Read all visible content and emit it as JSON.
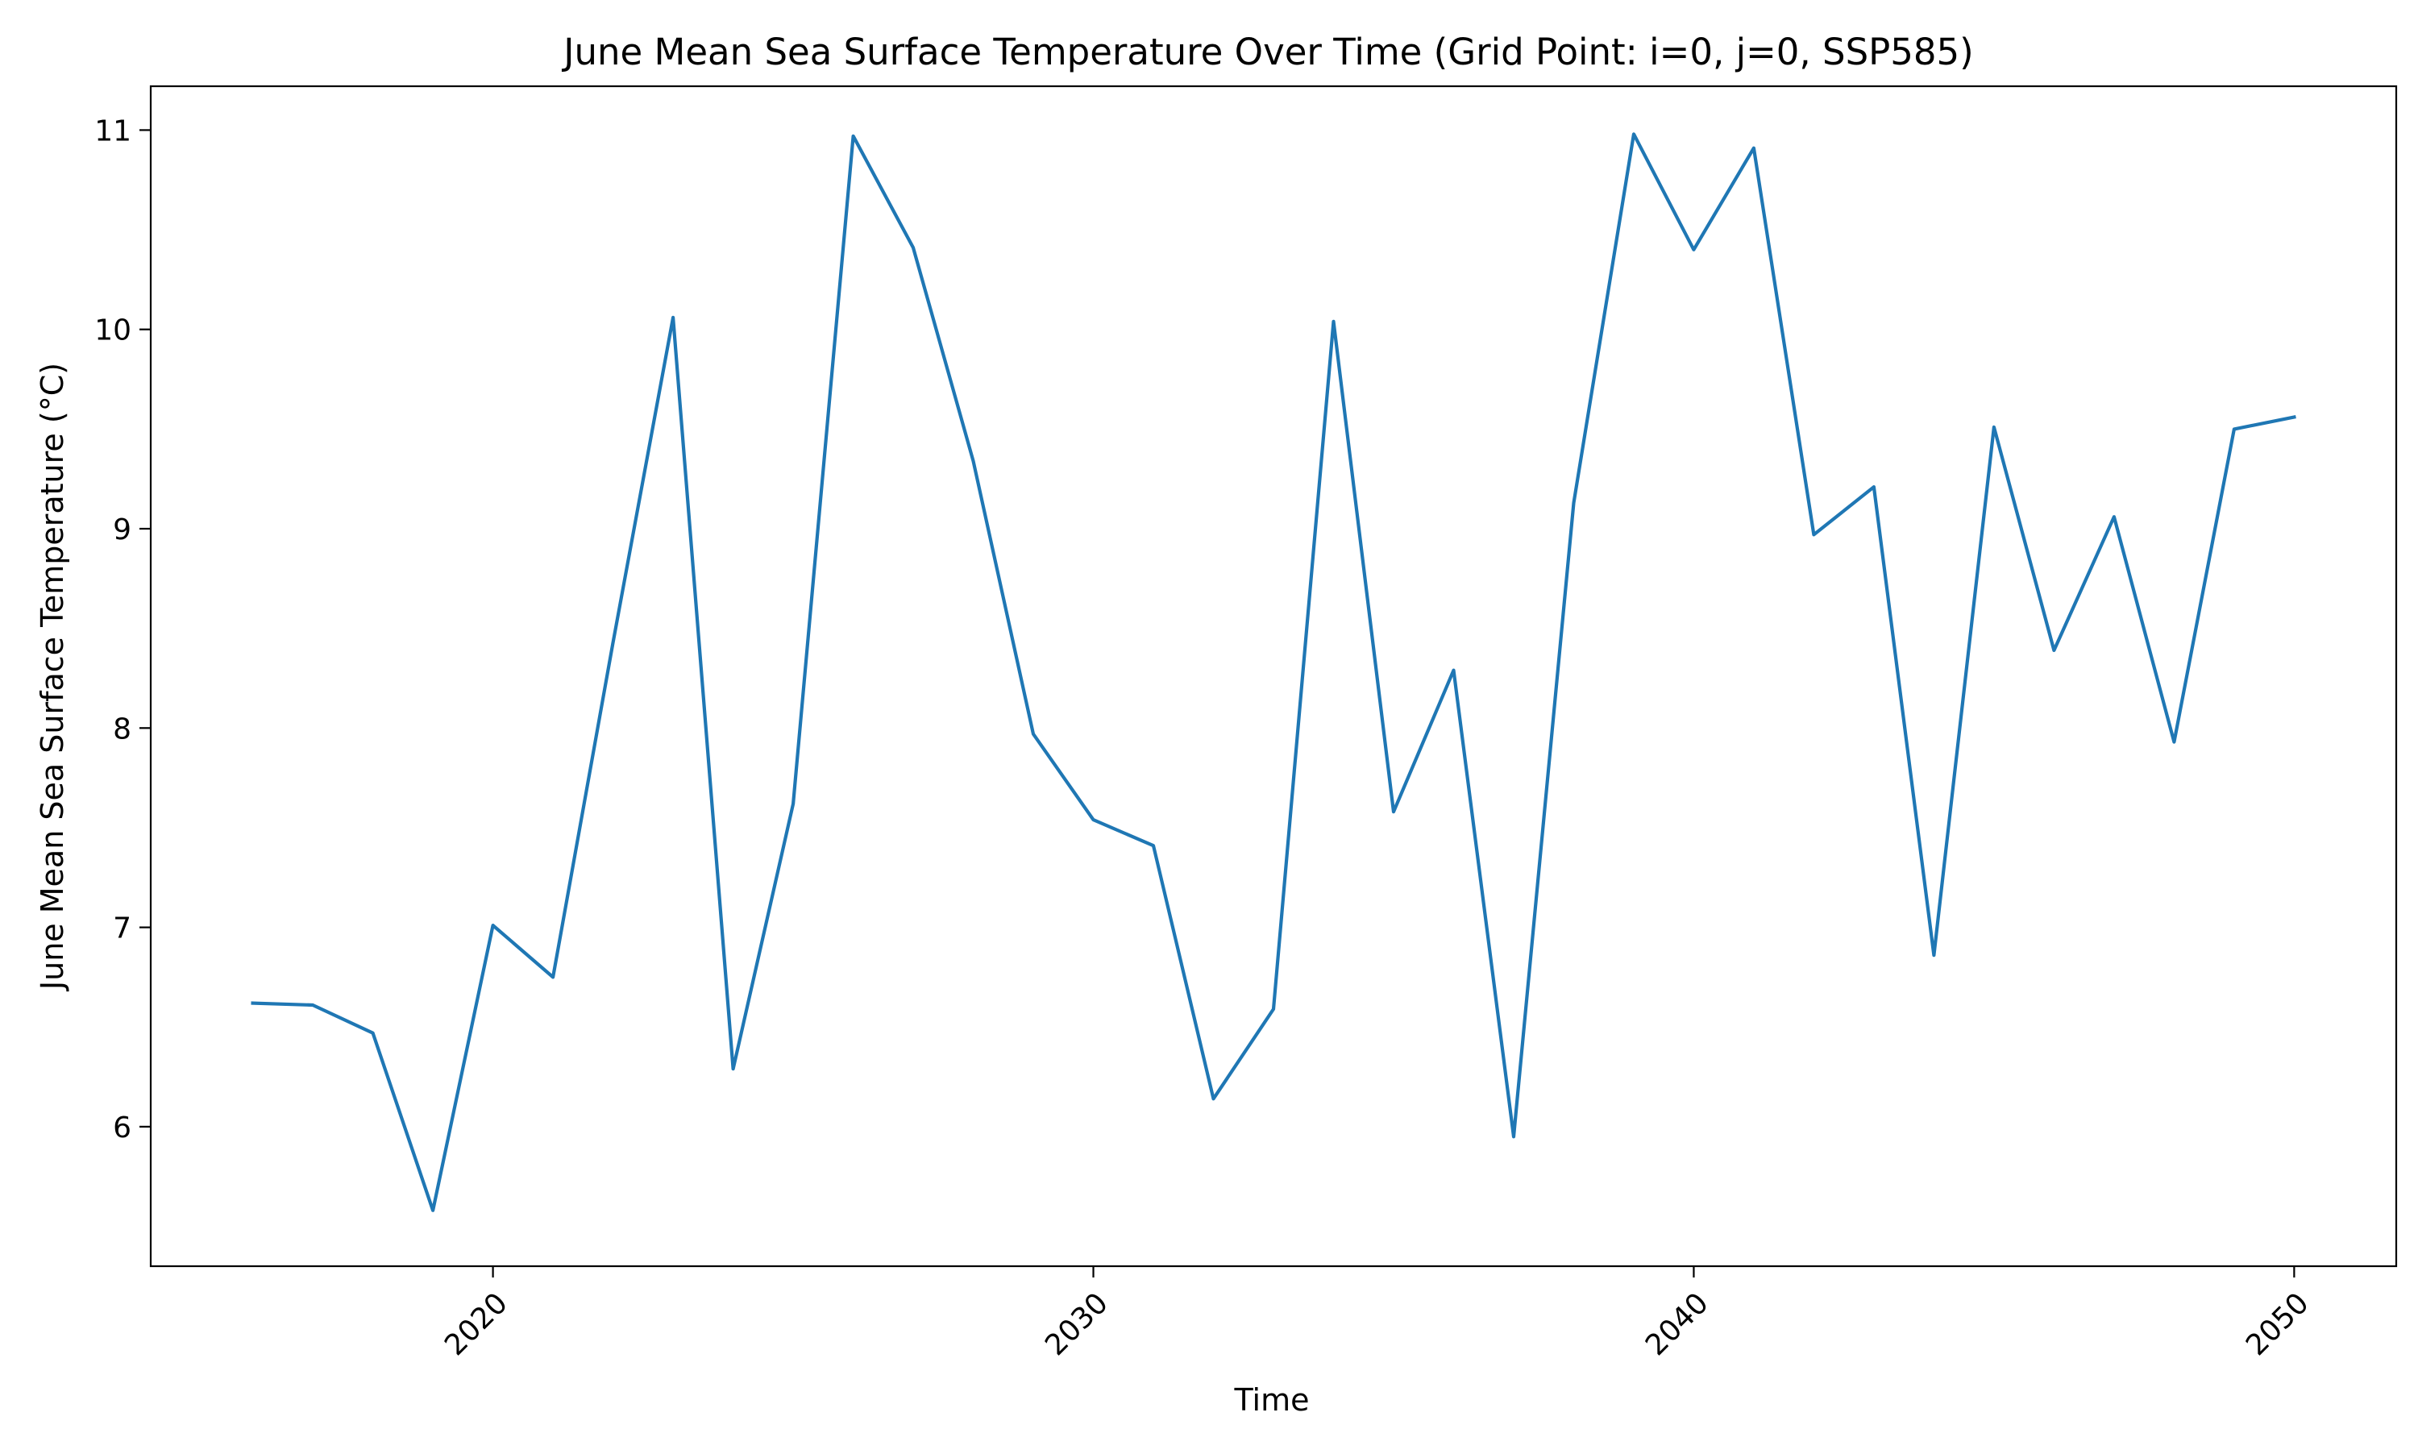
{
  "chart_data": {
    "type": "line",
    "title": "June Mean Sea Surface Temperature Over Time (Grid Point: i=0, j=0, SSP585)",
    "xlabel": "Time",
    "ylabel": "June Mean Sea Surface Temperature (°C)",
    "xlim": [
      2014.3,
      2051.7
    ],
    "ylim": [
      5.3,
      11.22
    ],
    "xticks": [
      2020,
      2030,
      2040,
      2050
    ],
    "xtick_labels": [
      "2020",
      "2030",
      "2040",
      "2050"
    ],
    "xtick_rotation": 45,
    "yticks": [
      6,
      7,
      8,
      9,
      10,
      11
    ],
    "ytick_labels": [
      "6",
      "7",
      "8",
      "9",
      "10",
      "11"
    ],
    "grid": false,
    "series": [
      {
        "color": "#1f77b4",
        "x": [
          2016,
          2017,
          2018,
          2019,
          2020,
          2021,
          2022,
          2023,
          2024,
          2025,
          2026,
          2027,
          2028,
          2029,
          2030,
          2031,
          2032,
          2033,
          2034,
          2035,
          2036,
          2037,
          2038,
          2039,
          2040,
          2041,
          2042,
          2043,
          2044,
          2045,
          2046,
          2047,
          2048,
          2049,
          2050
        ],
        "y": [
          6.62,
          6.61,
          6.47,
          5.58,
          7.01,
          6.75,
          8.43,
          10.06,
          6.29,
          7.62,
          10.97,
          10.41,
          9.34,
          7.97,
          7.54,
          7.41,
          6.14,
          6.59,
          10.04,
          7.58,
          8.29,
          5.95,
          9.13,
          10.98,
          10.4,
          10.91,
          8.97,
          9.21,
          6.86,
          9.51,
          8.39,
          9.06,
          7.93,
          9.5,
          9.56
        ]
      }
    ]
  }
}
